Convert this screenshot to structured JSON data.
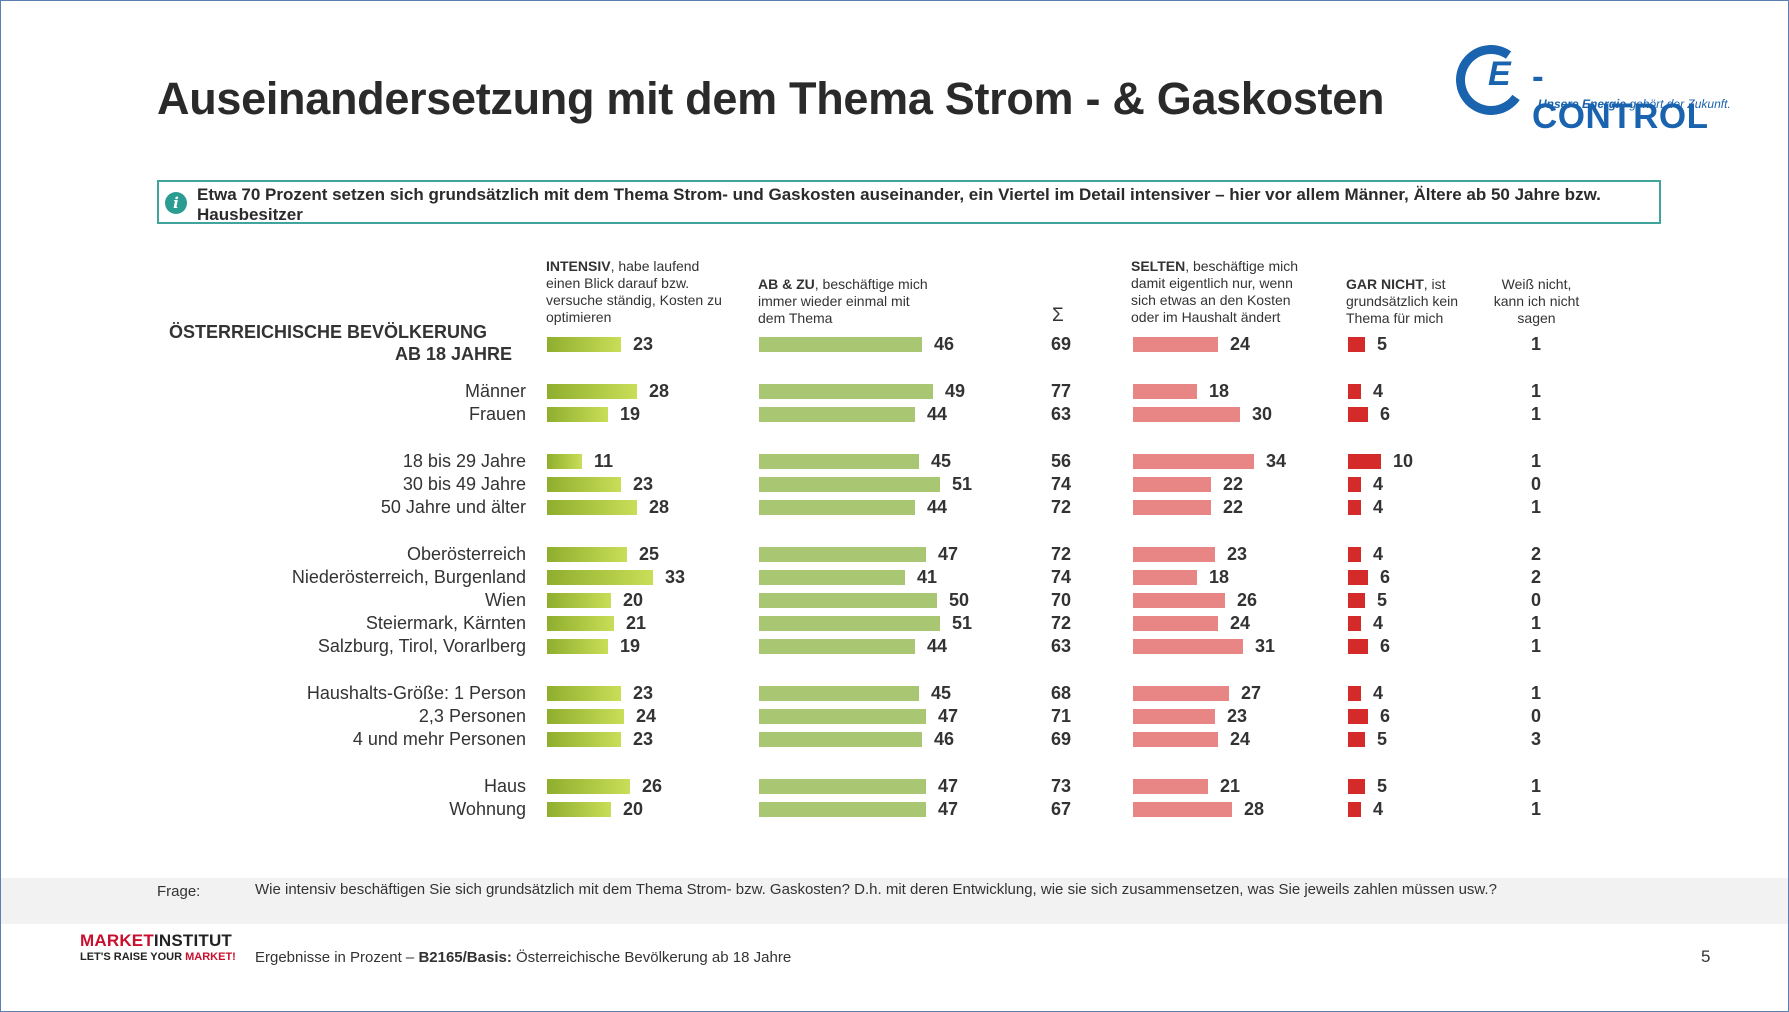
{
  "title": "Auseinandersetzung mit dem Thema Strom - & Gaskosten",
  "logo": {
    "mark": "E",
    "word": "-CONTROL",
    "tagline_bold": "Unsere Energie",
    "tagline": "gehört der Zukunft."
  },
  "info_icon": "i",
  "info_text": "Etwa 70 Prozent setzen sich grundsätzlich mit dem Thema Strom- und Gaskosten auseinander, ein Viertel im Detail intensiver – hier vor allem Männer, Ältere ab 50 Jahre bzw. Hausbesitzer",
  "headers": {
    "intensiv_bold": "INTENSIV",
    "intensiv_text": ", habe laufend einen Blick darauf bzw. versuche ständig, Kosten zu optimieren",
    "abzu_bold": "AB & ZU",
    "abzu_text": ", beschäftige mich immer wieder einmal mit dem Thema",
    "sum": "Σ",
    "selten_bold": "SELTEN",
    "selten_text": ", beschäftige mich damit eigentlich nur, wenn sich etwas an den Kosten oder im Haushalt ändert",
    "garnicht_bold": "GAR NICHT",
    "garnicht_text": ", ist grundsätzlich kein Thema für mich",
    "weiss": "Weiß nicht, kann ich nicht sagen"
  },
  "population_label": [
    "ÖSTERREICHISCHE BEVÖLKERUNG",
    "AB 18 JAHRE"
  ],
  "chart_data": {
    "type": "bar",
    "unit": "Prozent",
    "series_names": [
      "INTENSIV",
      "AB & ZU",
      "Σ",
      "SELTEN",
      "GAR NICHT",
      "Weiß nicht, kann ich nicht sagen"
    ],
    "rows": [
      {
        "label": "",
        "intensiv": 23,
        "abzu": 46,
        "sum": 69,
        "selten": 24,
        "garnicht": 5,
        "weiss": 1
      },
      {
        "label": "Männer",
        "intensiv": 28,
        "abzu": 49,
        "sum": 77,
        "selten": 18,
        "garnicht": 4,
        "weiss": 1
      },
      {
        "label": "Frauen",
        "intensiv": 19,
        "abzu": 44,
        "sum": 63,
        "selten": 30,
        "garnicht": 6,
        "weiss": 1
      },
      {
        "label": "18 bis 29 Jahre",
        "intensiv": 11,
        "abzu": 45,
        "sum": 56,
        "selten": 34,
        "garnicht": 10,
        "weiss": 1
      },
      {
        "label": "30 bis 49 Jahre",
        "intensiv": 23,
        "abzu": 51,
        "sum": 74,
        "selten": 22,
        "garnicht": 4,
        "weiss": 0
      },
      {
        "label": "50 Jahre und älter",
        "intensiv": 28,
        "abzu": 44,
        "sum": 72,
        "selten": 22,
        "garnicht": 4,
        "weiss": 1
      },
      {
        "label": "Oberösterreich",
        "intensiv": 25,
        "abzu": 47,
        "sum": 72,
        "selten": 23,
        "garnicht": 4,
        "weiss": 2
      },
      {
        "label": "Niederösterreich, Burgenland",
        "intensiv": 33,
        "abzu": 41,
        "sum": 74,
        "selten": 18,
        "garnicht": 6,
        "weiss": 2
      },
      {
        "label": "Wien",
        "intensiv": 20,
        "abzu": 50,
        "sum": 70,
        "selten": 26,
        "garnicht": 5,
        "weiss": 0
      },
      {
        "label": "Steiermark, Kärnten",
        "intensiv": 21,
        "abzu": 51,
        "sum": 72,
        "selten": 24,
        "garnicht": 4,
        "weiss": 1
      },
      {
        "label": "Salzburg, Tirol, Vorarlberg",
        "intensiv": 19,
        "abzu": 44,
        "sum": 63,
        "selten": 31,
        "garnicht": 6,
        "weiss": 1
      },
      {
        "label": "Haushalts-Größe: 1 Person",
        "intensiv": 23,
        "abzu": 45,
        "sum": 68,
        "selten": 27,
        "garnicht": 4,
        "weiss": 1
      },
      {
        "label": "2,3 Personen",
        "intensiv": 24,
        "abzu": 47,
        "sum": 71,
        "selten": 23,
        "garnicht": 6,
        "weiss": 0
      },
      {
        "label": "4 und mehr Personen",
        "intensiv": 23,
        "abzu": 46,
        "sum": 69,
        "selten": 24,
        "garnicht": 5,
        "weiss": 3
      },
      {
        "label": "Haus",
        "intensiv": 26,
        "abzu": 47,
        "sum": 73,
        "selten": 21,
        "garnicht": 5,
        "weiss": 1
      },
      {
        "label": "Wohnung",
        "intensiv": 20,
        "abzu": 47,
        "sum": 67,
        "selten": 28,
        "garnicht": 4,
        "weiss": 1
      }
    ]
  },
  "frage_label": "Frage:",
  "frage_text": "Wie intensiv beschäftigen Sie sich grundsätzlich mit dem Thema Strom- bzw. Gaskosten? D.h. mit deren Entwicklung, wie sie sich zusammensetzen, was Sie jeweils zahlen müssen usw.?",
  "brand": {
    "name_red": "MARKET",
    "name": "INSTITUT",
    "slogan": "LET'S RAISE YOUR ",
    "slogan_red": "MARKET!"
  },
  "footer": {
    "prefix": "Ergebnisse in Prozent – ",
    "code": "B2165/Basis:",
    "basis": " Österreichische Bevölkerung ab 18 Jahre"
  },
  "page_number": "5"
}
